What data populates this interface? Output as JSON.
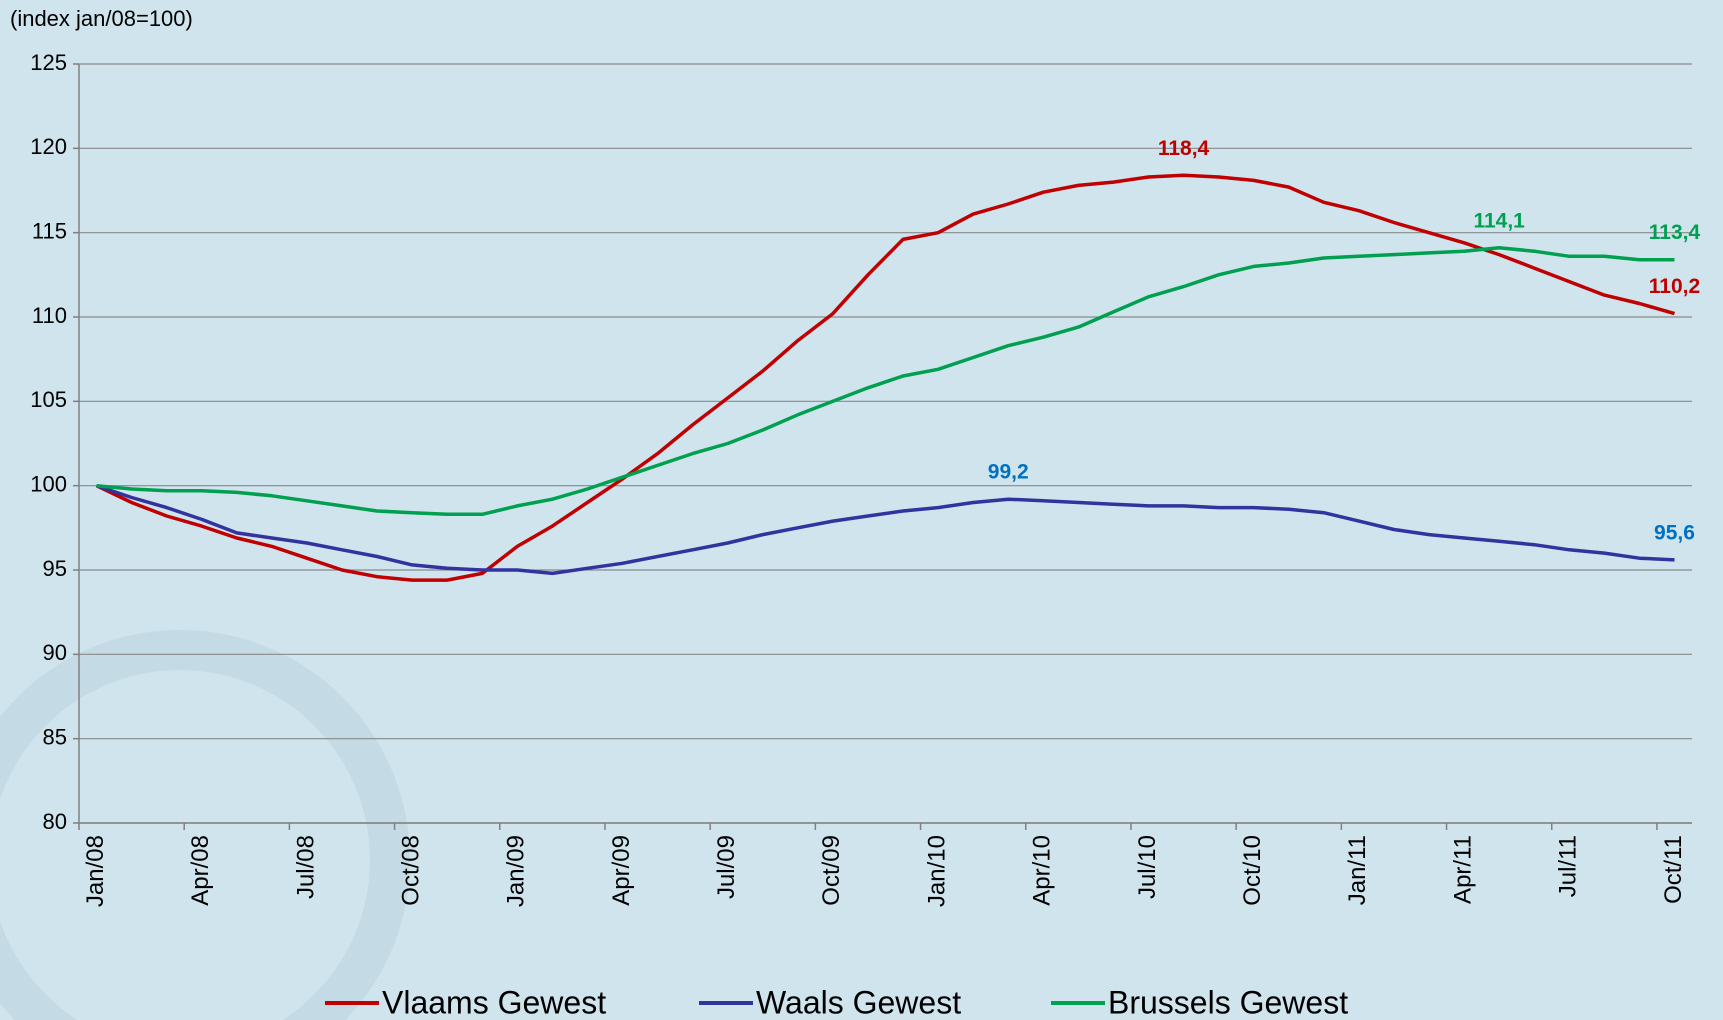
{
  "chart_data": {
    "type": "line",
    "y_axis_label": "(index jan/08=100)",
    "categories": [
      "Jan/08",
      null,
      null,
      "Apr/08",
      null,
      null,
      "Jul/08",
      null,
      null,
      "Oct/08",
      null,
      null,
      "Jan/09",
      null,
      null,
      "Apr/09",
      null,
      null,
      "Jul/09",
      null,
      null,
      "Oct/09",
      null,
      null,
      "Jan/10",
      null,
      null,
      "Apr/10",
      null,
      null,
      "Jul/10",
      null,
      null,
      "Oct/10",
      null,
      null,
      "Jan/11",
      null,
      null,
      "Apr/11",
      null,
      null,
      "Jul/11",
      null,
      null,
      "Oct/11"
    ],
    "ylim": [
      80,
      125
    ],
    "yticks": [
      80,
      85,
      90,
      95,
      100,
      105,
      110,
      115,
      120,
      125
    ],
    "grid": true,
    "legend": "bottom",
    "series": [
      {
        "name": "Vlaams Gewest",
        "color": "#c00000",
        "label_color": "#c00000",
        "values": [
          100,
          99.0,
          98.2,
          97.6,
          96.9,
          96.4,
          95.7,
          95.0,
          94.6,
          94.4,
          94.4,
          94.8,
          96.4,
          97.6,
          99.0,
          100.4,
          101.9,
          103.6,
          105.2,
          106.8,
          108.6,
          110.2,
          112.5,
          114.6,
          115.0,
          116.1,
          116.7,
          117.4,
          117.8,
          118.0,
          118.3,
          118.4,
          118.3,
          118.1,
          117.7,
          116.8,
          116.3,
          115.6,
          115.0,
          114.4,
          113.7,
          112.9,
          112.1,
          111.3,
          110.8,
          110.2
        ],
        "value_labels": [
          null,
          null,
          null,
          null,
          null,
          null,
          null,
          null,
          null,
          null,
          null,
          null,
          null,
          null,
          null,
          null,
          null,
          null,
          null,
          null,
          null,
          null,
          null,
          null,
          null,
          null,
          null,
          null,
          null,
          null,
          null,
          "118,4",
          null,
          null,
          null,
          null,
          null,
          null,
          null,
          null,
          null,
          null,
          null,
          null,
          null,
          "110,2"
        ]
      },
      {
        "name": "Waals Gewest",
        "color": "#3333a0",
        "label_color": "#0070c0",
        "values": [
          100,
          99.3,
          98.7,
          98.0,
          97.2,
          96.9,
          96.6,
          96.2,
          95.8,
          95.3,
          95.1,
          95.0,
          95.0,
          94.8,
          95.1,
          95.4,
          95.8,
          96.2,
          96.6,
          97.1,
          97.5,
          97.9,
          98.2,
          98.5,
          98.7,
          99.0,
          99.2,
          99.1,
          99.0,
          98.9,
          98.8,
          98.8,
          98.7,
          98.7,
          98.6,
          98.4,
          97.9,
          97.4,
          97.1,
          96.9,
          96.7,
          96.5,
          96.2,
          96.0,
          95.7,
          95.6
        ],
        "value_labels": [
          null,
          null,
          null,
          null,
          null,
          null,
          null,
          null,
          null,
          null,
          null,
          null,
          null,
          null,
          null,
          null,
          null,
          null,
          null,
          null,
          null,
          null,
          null,
          null,
          null,
          null,
          "99,2",
          null,
          null,
          null,
          null,
          null,
          null,
          null,
          null,
          null,
          null,
          null,
          null,
          null,
          null,
          null,
          null,
          null,
          null,
          "95,6"
        ]
      },
      {
        "name": "Brussels Gewest",
        "color": "#00a050",
        "label_color": "#00a050",
        "values": [
          100,
          99.8,
          99.7,
          99.7,
          99.6,
          99.4,
          99.1,
          98.8,
          98.5,
          98.4,
          98.3,
          98.3,
          98.8,
          99.2,
          99.8,
          100.5,
          101.2,
          101.9,
          102.5,
          103.3,
          104.2,
          105.0,
          105.8,
          106.5,
          106.9,
          107.6,
          108.3,
          108.8,
          109.4,
          110.3,
          111.2,
          111.8,
          112.5,
          113.0,
          113.2,
          113.5,
          113.6,
          113.7,
          113.8,
          113.9,
          114.1,
          113.9,
          113.6,
          113.6,
          113.4,
          113.4
        ],
        "value_labels": [
          null,
          null,
          null,
          null,
          null,
          null,
          null,
          null,
          null,
          null,
          null,
          null,
          null,
          null,
          null,
          null,
          null,
          null,
          null,
          null,
          null,
          null,
          null,
          null,
          null,
          null,
          null,
          null,
          null,
          null,
          null,
          null,
          null,
          null,
          null,
          null,
          null,
          null,
          null,
          null,
          "114,1",
          null,
          null,
          null,
          null,
          "113,4"
        ]
      }
    ]
  }
}
